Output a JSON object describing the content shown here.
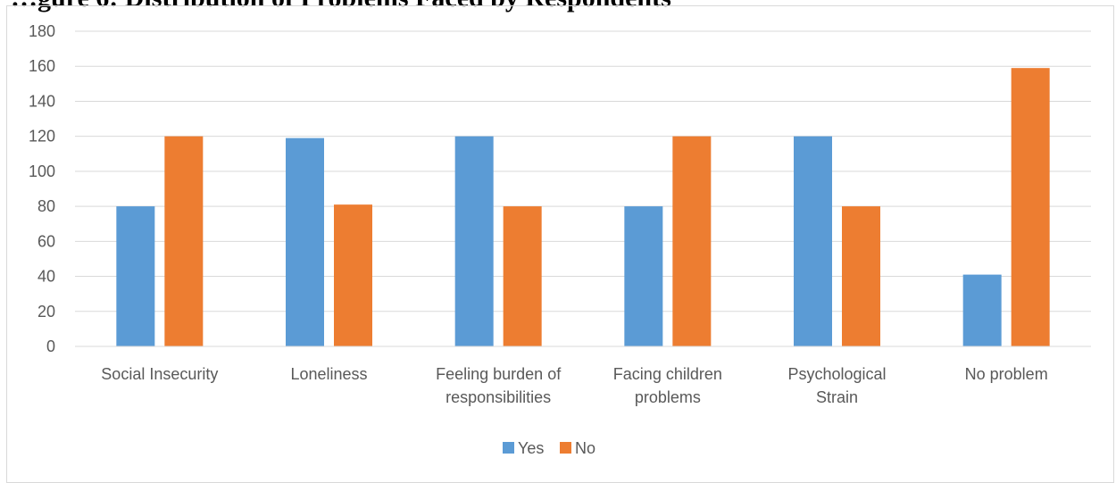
{
  "chart_data": {
    "type": "bar",
    "title": "",
    "title_visible_text": "…gure 6: Distribution of Problems Faced by Respondents",
    "xlabel": "",
    "ylabel": "",
    "categories": [
      [
        "Social Insecurity"
      ],
      [
        "Loneliness"
      ],
      [
        "Feeling burden of",
        "responsibilities"
      ],
      [
        "Facing children",
        "problems"
      ],
      [
        "Psychological",
        "Strain"
      ],
      [
        "No problem"
      ]
    ],
    "series": [
      {
        "name": "Yes",
        "color": "#5b9bd5",
        "values": [
          80,
          119,
          120,
          80,
          120,
          41
        ]
      },
      {
        "name": "No",
        "color": "#ed7d31",
        "values": [
          120,
          81,
          80,
          120,
          80,
          159
        ]
      }
    ],
    "ylim": [
      0,
      180
    ],
    "yticks": [
      0,
      20,
      40,
      60,
      80,
      100,
      120,
      140,
      160,
      180
    ],
    "grid": true,
    "legend": "bottom-center"
  }
}
